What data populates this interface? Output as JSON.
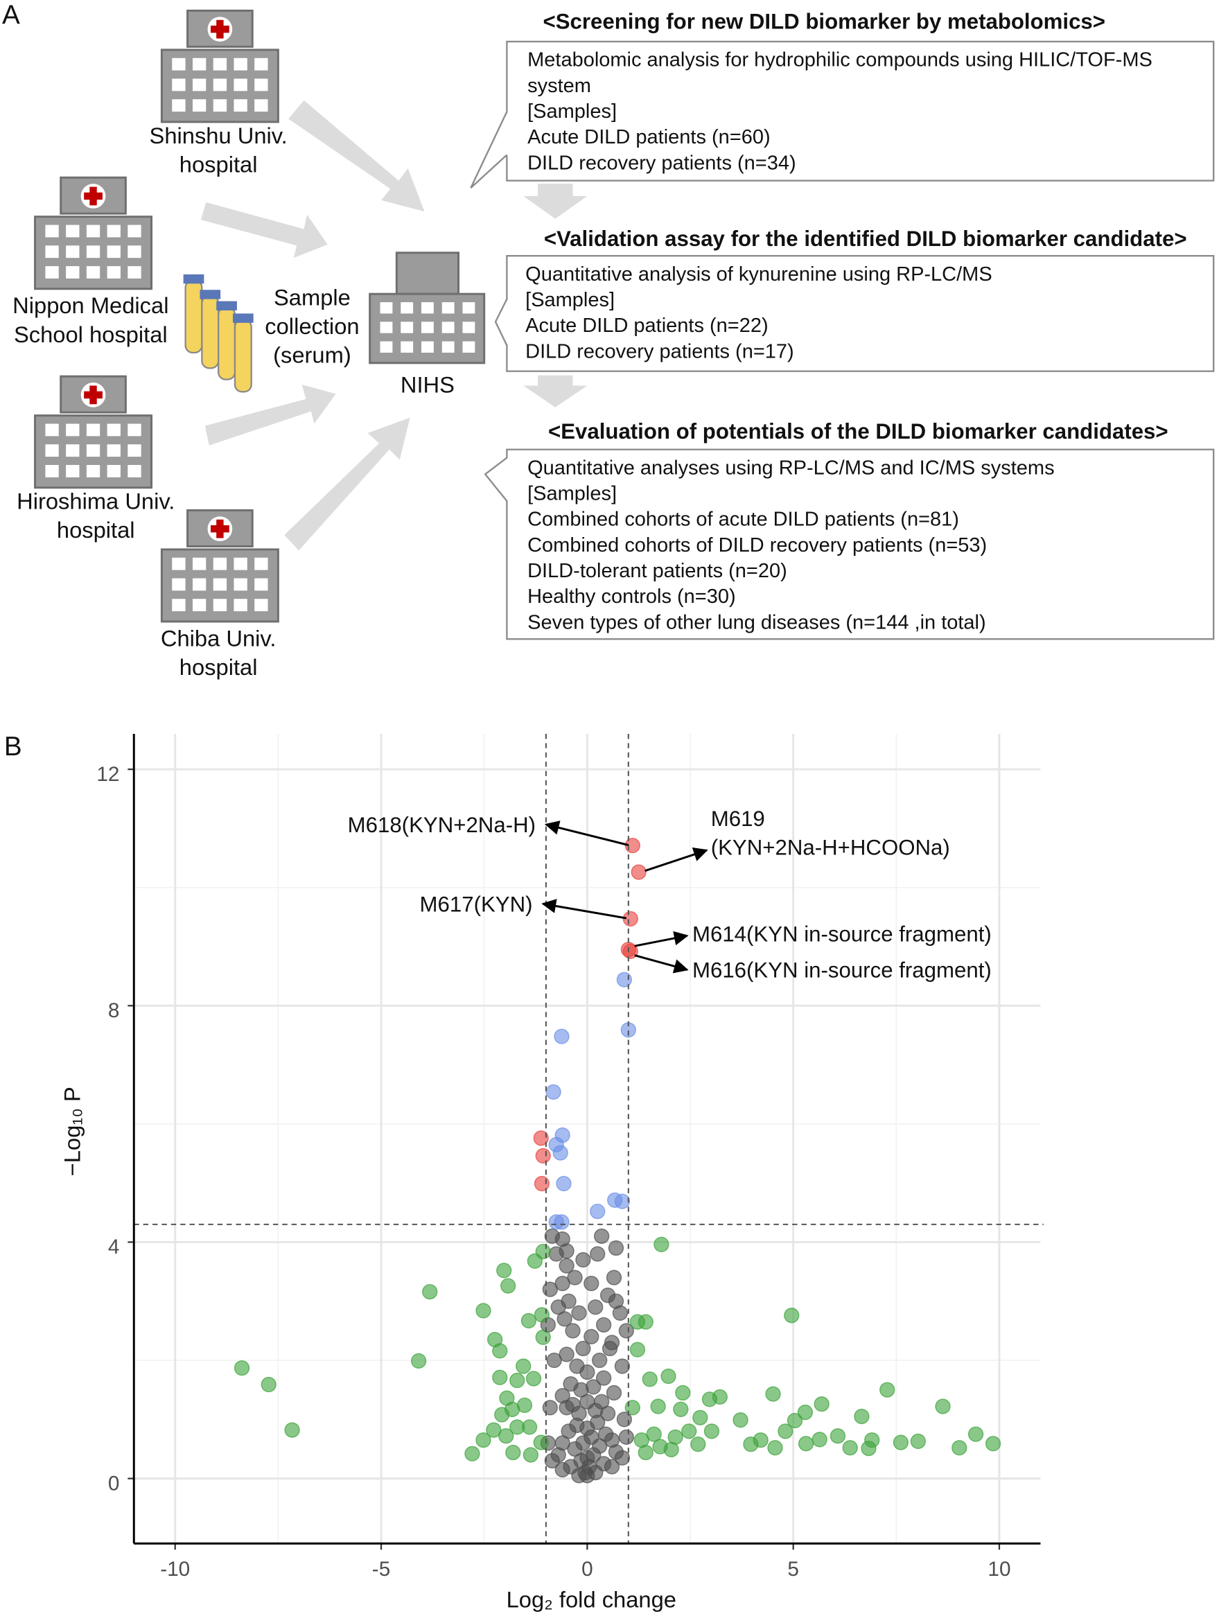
{
  "panel_a": {
    "label": "A",
    "hospitals": [
      [
        "Shinshu Univ.",
        "hospital"
      ],
      [
        "Nippon Medical",
        "School hospital"
      ],
      [
        "Hiroshima Univ.",
        "hospital"
      ],
      [
        "Chiba Univ.",
        "hospital"
      ]
    ],
    "sample_collection": [
      "Sample",
      "collection",
      "(serum)"
    ],
    "hub": "NIHS",
    "steps": [
      {
        "title": "<Screening for new DILD biomarker by metabolomics>",
        "lines": [
          "Metabolomic analysis for hydrophilic compounds using HILIC/TOF-MS system",
          "[Samples]",
          "Acute DILD patients (n=60)",
          "DILD recovery patients (n=34)"
        ]
      },
      {
        "title": "<Validation assay for the identified DILD biomarker candidate>",
        "lines": [
          "Quantitative analysis of kynurenine using RP-LC/MS",
          "[Samples]",
          "Acute DILD patients (n=22)",
          "DILD recovery patients (n=17)"
        ]
      },
      {
        "title": "<Evaluation of potentials of the DILD biomarker candidates>",
        "lines": [
          "Quantitative analyses using RP-LC/MS and IC/MS systems",
          "[Samples]",
          "Combined cohorts of acute DILD patients (n=81)",
          "Combined cohorts of DILD recovery patients (n=53)",
          "DILD-tolerant patients (n=20)",
          "Healthy controls (n=30)",
          "Seven types of other lung diseases (n=144 ,in total)"
        ]
      }
    ]
  },
  "chart_data": {
    "type": "scatter",
    "panel_label": "B",
    "xlabel": "Log₂ fold change",
    "ylabel": "−Log₁₀ P",
    "xlim": [
      -11,
      11
    ],
    "ylim": [
      -1.1,
      12.6
    ],
    "xticks": [
      -10,
      -5,
      0,
      5,
      10
    ],
    "yticks": [
      0,
      4,
      8,
      12
    ],
    "minor_xticks": [
      -7.5,
      -2.5,
      2.5,
      7.5
    ],
    "minor_yticks": [
      2,
      6,
      10
    ],
    "grid": true,
    "thresholds": {
      "x": [
        -1,
        1
      ],
      "y": 4.3
    },
    "series": [
      {
        "color": "#4f4f4f",
        "x": [
          -0.05,
          0.05,
          0,
          -0.15,
          0.15,
          -0.3,
          0.3,
          -0.1,
          0.1,
          0,
          -0.25,
          0.25,
          -0.45,
          0.45,
          -0.6,
          0.6,
          -0.7,
          0.7,
          -0.85,
          0.85,
          -0.2,
          0.2,
          0,
          -0.35,
          0.35,
          -0.5,
          0.5,
          -0.15,
          0.15,
          -0.4,
          0.4,
          -0.6,
          0.65,
          0,
          -0.25,
          0.3,
          -0.5,
          0.55,
          -0.1,
          0.1,
          -0.35,
          0.4,
          -0.55,
          0.6,
          -0.2,
          0.2,
          -0.45,
          0.5,
          -0.6,
          0.65,
          -0.3,
          -0.5,
          -0.9,
          0.7,
          -0.75,
          -0.5,
          0.7,
          -0.85,
          -0.6,
          0.35,
          0.25,
          -0.95,
          0.95,
          -0.8,
          0.85,
          -0.9,
          0.9,
          -0.95,
          0.95,
          -0.4,
          0.4,
          -0.6,
          0.6,
          0,
          -0.2,
          0.2,
          0.8,
          -0.7,
          0.1,
          -0.1
        ],
        "values": [
          0.1,
          0.2,
          0.35,
          0.3,
          0.4,
          0.5,
          0.55,
          0.6,
          0.7,
          0.85,
          0.9,
          0.95,
          0.8,
          0.75,
          0.6,
          0.65,
          0.4,
          0.45,
          0.3,
          0.35,
          1.1,
          1.15,
          1.3,
          1.25,
          1.3,
          1.2,
          1.1,
          1.5,
          1.55,
          1.6,
          1.7,
          1.4,
          1.45,
          1.8,
          1.9,
          2.0,
          2.1,
          2.2,
          2.2,
          2.4,
          2.5,
          2.6,
          2.7,
          2.3,
          2.8,
          2.9,
          3.0,
          3.1,
          3.3,
          3.4,
          3.4,
          3.6,
          3.2,
          3.0,
          3.8,
          3.85,
          3.9,
          4.1,
          4.05,
          4.1,
          3.8,
          2.6,
          2.5,
          2.0,
          1.9,
          1.2,
          1.0,
          0.6,
          0.7,
          0.2,
          0.25,
          0.15,
          0.2,
          0.05,
          0.05,
          0.1,
          2.8,
          2.9,
          3.3,
          3.7
        ]
      },
      {
        "color": "#3ca33a",
        "x": [
          -8.38,
          -7.73,
          -7.16,
          -4.09,
          -3.82,
          -2.52,
          -2.02,
          -1.92,
          -2.24,
          -2.12,
          -1.27,
          -1.07,
          -1.1,
          -1.42,
          -1.07,
          1.8,
          4.96,
          1.22,
          1.42,
          1.22,
          7.28,
          8.63,
          9.43,
          9.85,
          9.03,
          8.03,
          7.61,
          6.91,
          6.83,
          6.38,
          6.66,
          5.69,
          5.29,
          5.04,
          4.81,
          4.51,
          4.21,
          3.97,
          6.08,
          5.64,
          5.31,
          4.56,
          3.72,
          3.22,
          2.97,
          2.32,
          1.97,
          1.72,
          2.27,
          2.74,
          3.02,
          2.47,
          2.14,
          1.62,
          1.32,
          1.77,
          2.04,
          2.69,
          1.52,
          1.1,
          1.42,
          -2.79,
          -2.52,
          -2.07,
          -1.82,
          -2.12,
          -1.7,
          -1.3,
          -1.52,
          -1.4,
          -1.97,
          -1.8,
          -1.37,
          -1.12,
          -1.7,
          -2.27,
          -1.95,
          -1.55
        ],
        "values": [
          1.87,
          1.59,
          0.82,
          1.99,
          3.16,
          2.84,
          3.52,
          3.26,
          2.35,
          2.16,
          3.68,
          3.84,
          2.77,
          2.67,
          2.39,
          3.96,
          2.76,
          2.65,
          2.65,
          2.18,
          1.5,
          1.22,
          0.75,
          0.59,
          0.52,
          0.63,
          0.61,
          0.65,
          0.51,
          0.52,
          1.05,
          1.26,
          1.12,
          0.98,
          0.8,
          1.43,
          0.65,
          0.58,
          0.72,
          0.66,
          0.59,
          0.52,
          0.99,
          1.38,
          1.34,
          1.45,
          1.73,
          1.22,
          1.17,
          1.03,
          0.8,
          0.8,
          0.7,
          0.75,
          0.65,
          0.54,
          0.49,
          0.58,
          1.68,
          1.2,
          0.44,
          0.42,
          0.65,
          1.08,
          1.17,
          1.71,
          1.66,
          1.69,
          1.24,
          0.87,
          0.72,
          0.44,
          0.4,
          0.61,
          0.87,
          0.82,
          1.36,
          1.9
        ]
      },
      {
        "color": "#6b8fe6",
        "x": [
          0.9,
          1.0,
          -0.62,
          -0.82,
          -0.6,
          -0.75,
          -0.65,
          -0.57,
          0.25,
          0.67,
          0.85,
          -0.75,
          -0.62
        ],
        "values": [
          8.44,
          7.59,
          7.48,
          6.54,
          5.81,
          5.65,
          5.51,
          4.99,
          4.52,
          4.71,
          4.69,
          4.34,
          4.34
        ]
      },
      {
        "color": "#e8413c",
        "x": [
          1.1,
          1.25,
          1.05,
          1.0,
          1.05,
          -1.12,
          -1.07,
          -1.1
        ],
        "values": [
          10.71,
          10.26,
          9.47,
          8.95,
          8.92,
          5.76,
          5.46,
          4.99
        ]
      }
    ],
    "annotations": [
      [
        "M618(KYN+2Na-H)"
      ],
      [
        "M619",
        "(KYN+2Na-H+HCOONa)"
      ],
      [
        "M617(KYN)"
      ],
      [
        "M614(KYN in-source fragment)"
      ],
      [
        "M616(KYN in-source fragment)"
      ]
    ]
  }
}
